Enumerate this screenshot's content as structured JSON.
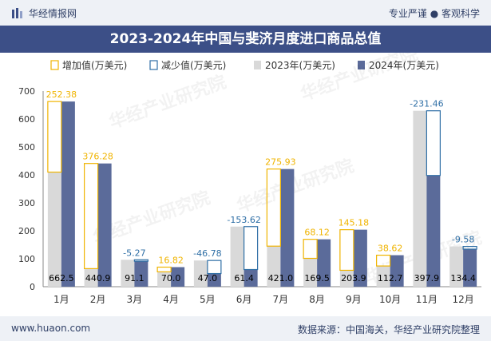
{
  "header": {
    "brand": "华经情报网",
    "tagline": "专业严谨 ● 客观科学",
    "title": "2023-2024年中国与斐济月度进口商品总值"
  },
  "footer": {
    "site": "www.huaon.com",
    "source": "数据来源：中国海关，华经产业研究院整理"
  },
  "watermark": "华经产业研究院",
  "colors": {
    "increase": "#f0b400",
    "decrease": "#2f6fa6",
    "y2023": "#d9d9d9",
    "y2024": "#5b6b9a",
    "title_bg": "#3c4f87",
    "bar_bg": "#eef1f6",
    "text": "#2f3f66",
    "label": "#000000"
  },
  "chart_data": {
    "type": "bar",
    "categories": [
      "1月",
      "2月",
      "3月",
      "4月",
      "5月",
      "6月",
      "7月",
      "8月",
      "9月",
      "10月",
      "11月",
      "12月"
    ],
    "series": [
      {
        "name": "2023年(万美元)",
        "values": [
          410,
          64.6,
          96.4,
          53.2,
          93.8,
          215.0,
          145.1,
          101.4,
          58.7,
          74.1,
          629.4,
          144.0
        ]
      },
      {
        "name": "2024年(万美元)",
        "values": [
          662.5,
          440.9,
          91.1,
          70.0,
          47.0,
          61.4,
          421.0,
          169.5,
          203.9,
          112.7,
          397.9,
          134.4
        ]
      }
    ],
    "change": [
      {
        "kind": "increase",
        "value": "252.38"
      },
      {
        "kind": "increase",
        "value": "376.28"
      },
      {
        "kind": "decrease",
        "value": "-5.27"
      },
      {
        "kind": "increase",
        "value": "16.82"
      },
      {
        "kind": "decrease",
        "value": "-46.78"
      },
      {
        "kind": "decrease",
        "value": "-153.62"
      },
      {
        "kind": "increase",
        "value": "275.93"
      },
      {
        "kind": "increase",
        "value": "68.12"
      },
      {
        "kind": "increase",
        "value": "145.18"
      },
      {
        "kind": "increase",
        "value": "38.62"
      },
      {
        "kind": "decrease",
        "value": "-231.46"
      },
      {
        "kind": "decrease",
        "value": "-9.58"
      }
    ],
    "value_labels": [
      "662.5",
      "440.9",
      "91.1",
      "70.0",
      "47.0",
      "61.4",
      "421.0",
      "169.5",
      "203.9",
      "112.7",
      "397.9",
      "134.4"
    ],
    "legend": [
      "增加值(万美元)",
      "减少值(万美元)",
      "2023年(万美元)",
      "2024年(万美元)"
    ],
    "legend_placement": "top",
    "yticks": [
      "0",
      "100",
      "200",
      "300",
      "400",
      "500",
      "600",
      "700"
    ],
    "ylim": [
      0,
      700
    ],
    "grid": false
  }
}
